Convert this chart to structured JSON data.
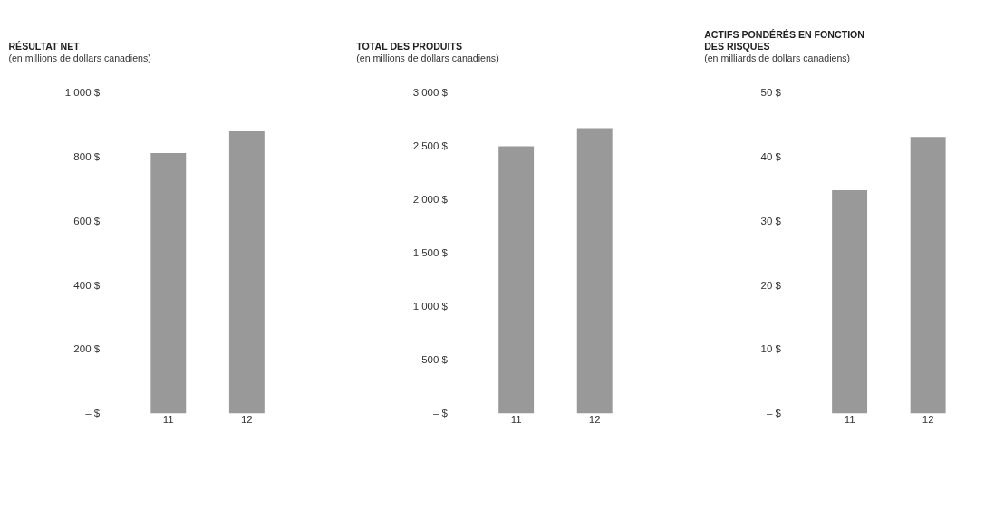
{
  "chart_data": [
    {
      "type": "bar",
      "title": "RÉSULTAT NET",
      "subtitle": "(en millions de dollars canadiens)",
      "categories": [
        "11",
        "12"
      ],
      "values": [
        812,
        880
      ],
      "color": "#999999",
      "ylim": [
        0,
        1000
      ],
      "yticks": [
        {
          "value": 0,
          "label": "– $"
        },
        {
          "value": 200,
          "label": "200 $"
        },
        {
          "value": 400,
          "label": "400 $"
        },
        {
          "value": 600,
          "label": "600 $"
        },
        {
          "value": 800,
          "label": "800 $"
        },
        {
          "value": 1000,
          "label": "1 000 $"
        }
      ],
      "grid": false
    },
    {
      "type": "bar",
      "title": "TOTAL DES PRODUITS",
      "subtitle": "(en millions de dollars canadiens)",
      "categories": [
        "11",
        "12"
      ],
      "values": [
        2500,
        2670
      ],
      "color": "#999999",
      "ylim": [
        0,
        3000
      ],
      "yticks": [
        {
          "value": 0,
          "label": "– $"
        },
        {
          "value": 500,
          "label": "500 $"
        },
        {
          "value": 1000,
          "label": "1 000 $"
        },
        {
          "value": 1500,
          "label": "1 500 $"
        },
        {
          "value": 2000,
          "label": "2 000 $"
        },
        {
          "value": 2500,
          "label": "2 500 $"
        },
        {
          "value": 3000,
          "label": "3 000 $"
        }
      ],
      "grid": false
    },
    {
      "type": "bar",
      "title": "ACTIFS PONDÉRÉS EN FONCTION\nDES RISQUES",
      "subtitle": "(en milliards de dollars canadiens)",
      "categories": [
        "11",
        "12"
      ],
      "values": [
        34.8,
        43.1
      ],
      "color": "#999999",
      "ylim": [
        0,
        50
      ],
      "yticks": [
        {
          "value": 0,
          "label": "– $"
        },
        {
          "value": 10,
          "label": "10 $"
        },
        {
          "value": 20,
          "label": "20 $"
        },
        {
          "value": 30,
          "label": "30 $"
        },
        {
          "value": 40,
          "label": "40 $"
        },
        {
          "value": 50,
          "label": "50 $"
        }
      ],
      "grid": false
    }
  ]
}
